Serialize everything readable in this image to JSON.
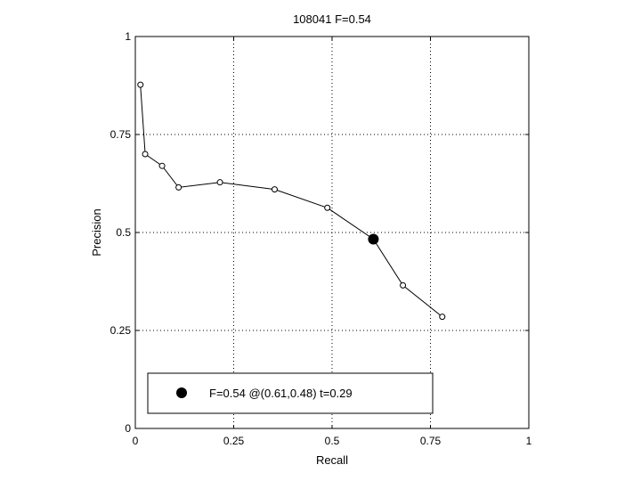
{
  "chart_data": {
    "type": "line",
    "title": "108041 F=0.54",
    "xlabel": "Recall",
    "ylabel": "Precision",
    "xlim": [
      0,
      1
    ],
    "ylim": [
      0,
      1
    ],
    "grid": true,
    "x_ticks": [
      0,
      0.25,
      0.5,
      0.75,
      1
    ],
    "x_tick_labels": [
      "0",
      "0.25",
      "0.5",
      "0.75",
      "1"
    ],
    "y_ticks": [
      0,
      0.25,
      0.5,
      0.75,
      1
    ],
    "y_tick_labels": [
      "0",
      "0.25",
      "0.5",
      "0.75",
      "1"
    ],
    "series": [
      {
        "x": [
          0.013,
          0.025,
          0.068,
          0.11,
          0.215,
          0.354,
          0.488,
          0.605,
          0.68,
          0.78
        ],
        "y": [
          0.877,
          0.7,
          0.67,
          0.615,
          0.628,
          0.61,
          0.563,
          0.483,
          0.365,
          0.285
        ],
        "marker": "open-circle",
        "color": "#000000"
      }
    ],
    "highlight_point": {
      "x": 0.605,
      "y": 0.483,
      "marker": "filled-circle",
      "color": "#000000"
    },
    "legend": {
      "position": "bottom",
      "entries": [
        {
          "label": "F=0.54 @(0.61,0.48) t=0.29",
          "marker": "filled-circle"
        }
      ]
    }
  }
}
